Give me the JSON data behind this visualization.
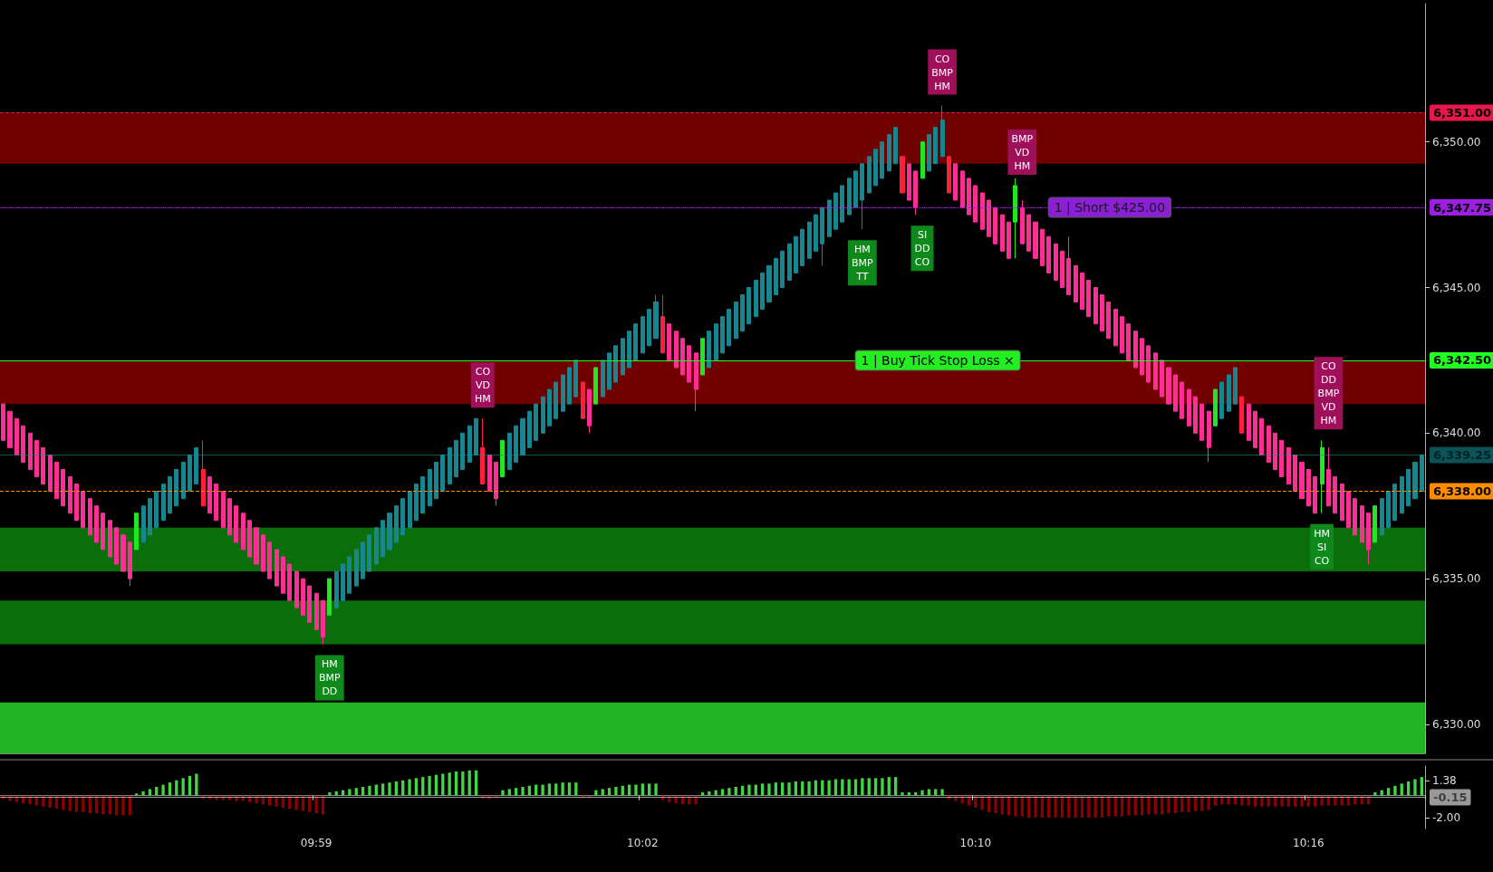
{
  "chart_data": [
    {
      "type": "candlestick",
      "categories": [
        null,
        null,
        null,
        null,
        null,
        null,
        null,
        null,
        null,
        null,
        null,
        null,
        null,
        null,
        null,
        null,
        null,
        null,
        null,
        null,
        null,
        null,
        null,
        null,
        null,
        null,
        null,
        null,
        null,
        null,
        null,
        null,
        null,
        null,
        null,
        null,
        null,
        null,
        null,
        null,
        null,
        null,
        null,
        null,
        null,
        null,
        null,
        null,
        null,
        null,
        null,
        null,
        null,
        null,
        null,
        null,
        null,
        null,
        null,
        null,
        null,
        null,
        null,
        null,
        null,
        null,
        null,
        null,
        null,
        null,
        null,
        null,
        null,
        null,
        null,
        null,
        null,
        null,
        null,
        null,
        null,
        null,
        null,
        null,
        null,
        null,
        null,
        null,
        null,
        null,
        null,
        null,
        null,
        null,
        null,
        null,
        null,
        null,
        null,
        null,
        null,
        null,
        null,
        null,
        null,
        null,
        null,
        null,
        null,
        null,
        null,
        null,
        null,
        null,
        null,
        null,
        null,
        null,
        null,
        null,
        null,
        null,
        null,
        null,
        null,
        null,
        null,
        null,
        null,
        null,
        null,
        null,
        null,
        null,
        null,
        null,
        null,
        null,
        null,
        null,
        null,
        null,
        null,
        null,
        null,
        null,
        null,
        null,
        null,
        null,
        null,
        null,
        null,
        null,
        null,
        null,
        null,
        null,
        null,
        null,
        null,
        null,
        null,
        null,
        null,
        null,
        null,
        null,
        null,
        null,
        null,
        null,
        null,
        null,
        null,
        null,
        null,
        null,
        null,
        null,
        null,
        null,
        null,
        null,
        null,
        null,
        null,
        null,
        null,
        null,
        null,
        null,
        null,
        null,
        null,
        null,
        null,
        null,
        null,
        null,
        null,
        null,
        null,
        null,
        null,
        null,
        null,
        null,
        null,
        null,
        null,
        null,
        null,
        null
      ],
      "ohlc": [
        [
          6341,
          6341,
          6339.75,
          6339.75
        ],
        [
          6340.75,
          6340.75,
          6339.5,
          6339.5
        ],
        [
          6340.5,
          6340.5,
          6339.25,
          6339.25
        ],
        [
          6340.25,
          6340.25,
          6339,
          6339
        ],
        [
          6340,
          6340,
          6338.75,
          6338.75
        ],
        [
          6339.75,
          6339.75,
          6338.5,
          6338.5
        ],
        [
          6339.5,
          6339.5,
          6338.25,
          6338.25
        ],
        [
          6339.25,
          6339.25,
          6338,
          6338
        ],
        [
          6339,
          6339,
          6337.75,
          6337.75
        ],
        [
          6338.75,
          6338.75,
          6337.5,
          6337.5
        ],
        [
          6338.5,
          6338.5,
          6337.25,
          6337.25
        ],
        [
          6338.25,
          6338.25,
          6337,
          6337
        ],
        [
          6338,
          6338,
          6336.75,
          6336.75
        ],
        [
          6337.75,
          6337.75,
          6336.5,
          6336.5
        ],
        [
          6337.5,
          6337.5,
          6336.25,
          6336.25
        ],
        [
          6337.25,
          6337.25,
          6336,
          6336
        ],
        [
          6337,
          6337,
          6335.75,
          6335.75
        ],
        [
          6336.75,
          6336.75,
          6335.5,
          6335.5
        ],
        [
          6336.5,
          6336.5,
          6335.25,
          6335.25
        ],
        [
          6336.25,
          6336.25,
          6334.75,
          6335
        ],
        [
          6336,
          6337.25,
          6336,
          6337.25
        ],
        [
          6336.25,
          6337.5,
          6336.25,
          6337.5
        ],
        [
          6336.5,
          6337.75,
          6336.5,
          6337.75
        ],
        [
          6336.75,
          6338,
          6336.75,
          6338
        ],
        [
          6337,
          6338.25,
          6337,
          6338.25
        ],
        [
          6337.25,
          6338.5,
          6337.25,
          6338.5
        ],
        [
          6337.5,
          6338.75,
          6337.5,
          6338.75
        ],
        [
          6337.75,
          6339,
          6337.75,
          6339
        ],
        [
          6338,
          6339.25,
          6338,
          6339.25
        ],
        [
          6338.25,
          6339.5,
          6338.25,
          6339.5
        ],
        [
          6338.75,
          6339.75,
          6337.5,
          6337.5
        ],
        [
          6338.5,
          6338.5,
          6337.25,
          6337.25
        ],
        [
          6338.25,
          6338.25,
          6337,
          6337
        ],
        [
          6338,
          6338,
          6336.75,
          6336.75
        ],
        [
          6337.75,
          6337.75,
          6336.5,
          6336.5
        ],
        [
          6337.5,
          6337.5,
          6336.25,
          6336.25
        ],
        [
          6337.25,
          6337.25,
          6336,
          6336
        ],
        [
          6337,
          6337,
          6335.75,
          6335.75
        ],
        [
          6336.75,
          6336.75,
          6335.5,
          6335.5
        ],
        [
          6336.5,
          6336.5,
          6335.25,
          6335.25
        ],
        [
          6336.25,
          6336.25,
          6335,
          6335
        ],
        [
          6336,
          6336,
          6334.75,
          6334.75
        ],
        [
          6335.75,
          6335.75,
          6334.5,
          6334.5
        ],
        [
          6335.5,
          6335.5,
          6334.25,
          6334.25
        ],
        [
          6335.25,
          6335.25,
          6334,
          6334
        ],
        [
          6335,
          6335,
          6333.75,
          6333.75
        ],
        [
          6334.75,
          6334.75,
          6333.5,
          6333.5
        ],
        [
          6334.5,
          6334.5,
          6333.25,
          6333.25
        ],
        [
          6334.25,
          6334.25,
          6332.75,
          6333
        ],
        [
          6333.75,
          6335,
          6333.75,
          6335
        ],
        [
          6334,
          6335.25,
          6334,
          6335.25
        ],
        [
          6334.25,
          6335.5,
          6334.25,
          6335.5
        ],
        [
          6334.5,
          6335.75,
          6334.5,
          6335.75
        ],
        [
          6334.75,
          6336,
          6334.75,
          6336
        ],
        [
          6335,
          6336.25,
          6335,
          6336.25
        ],
        [
          6335.25,
          6336.5,
          6335.25,
          6336.5
        ],
        [
          6335.5,
          6336.75,
          6335.5,
          6336.75
        ],
        [
          6335.75,
          6337,
          6335.75,
          6337
        ],
        [
          6336,
          6337.25,
          6336,
          6337.25
        ],
        [
          6336.25,
          6337.5,
          6336.25,
          6337.5
        ],
        [
          6336.5,
          6337.75,
          6336.5,
          6337.75
        ],
        [
          6336.75,
          6338,
          6336.75,
          6338
        ],
        [
          6337,
          6338.25,
          6337,
          6338.25
        ],
        [
          6337.25,
          6338.5,
          6337.25,
          6338.5
        ],
        [
          6337.5,
          6338.75,
          6337.5,
          6338.75
        ],
        [
          6337.75,
          6339,
          6337.75,
          6339
        ],
        [
          6338,
          6339.25,
          6338,
          6339.25
        ],
        [
          6338.25,
          6339.5,
          6338.25,
          6339.5
        ],
        [
          6338.5,
          6339.75,
          6338.5,
          6339.75
        ],
        [
          6338.75,
          6340,
          6338.75,
          6340
        ],
        [
          6339,
          6340.25,
          6339,
          6340.25
        ],
        [
          6339.25,
          6340.5,
          6339.25,
          6340.5
        ],
        [
          6339.5,
          6340.5,
          6338.25,
          6338.25
        ],
        [
          6339.25,
          6339.25,
          6338,
          6338
        ],
        [
          6339,
          6339,
          6337.5,
          6337.75
        ],
        [
          6338.5,
          6339.75,
          6338.5,
          6339.75
        ],
        [
          6338.75,
          6340,
          6338.75,
          6340
        ],
        [
          6339,
          6340.25,
          6339,
          6340.25
        ],
        [
          6339.25,
          6340.5,
          6339.25,
          6340.5
        ],
        [
          6339.5,
          6340.75,
          6339.5,
          6340.75
        ],
        [
          6339.75,
          6341,
          6339.75,
          6341
        ],
        [
          6340,
          6341.25,
          6340,
          6341.25
        ],
        [
          6340.25,
          6341.5,
          6340.25,
          6341.5
        ],
        [
          6340.5,
          6341.75,
          6340.5,
          6341.75
        ],
        [
          6340.75,
          6342,
          6340.75,
          6342
        ],
        [
          6341,
          6342.25,
          6341,
          6342.25
        ],
        [
          6341.25,
          6342.5,
          6341.25,
          6342.5
        ],
        [
          6341.75,
          6341.75,
          6340.5,
          6340.5
        ],
        [
          6341.5,
          6341.5,
          6340,
          6340.25
        ],
        [
          6341,
          6342.25,
          6341,
          6342.25
        ],
        [
          6341.25,
          6342.5,
          6341.25,
          6342.5
        ],
        [
          6341.5,
          6342.75,
          6341.5,
          6342.75
        ],
        [
          6341.75,
          6343,
          6341.75,
          6343
        ],
        [
          6342,
          6343.25,
          6342,
          6343.25
        ],
        [
          6342.25,
          6343.5,
          6342.25,
          6343.5
        ],
        [
          6342.5,
          6343.75,
          6342.5,
          6343.75
        ],
        [
          6342.75,
          6344,
          6342.75,
          6344
        ],
        [
          6343,
          6344.25,
          6343,
          6344.25
        ],
        [
          6343.25,
          6344.75,
          6343.25,
          6344.5
        ],
        [
          6344,
          6344.75,
          6342.75,
          6342.75
        ],
        [
          6343.75,
          6343.75,
          6342.5,
          6342.5
        ],
        [
          6343.5,
          6343.5,
          6342.25,
          6342.25
        ],
        [
          6343.25,
          6343.25,
          6342,
          6342
        ],
        [
          6343,
          6343,
          6341.75,
          6341.75
        ],
        [
          6342.75,
          6342.75,
          6340.75,
          6341.5
        ],
        [
          6342,
          6343.25,
          6342,
          6343.25
        ],
        [
          6342.25,
          6343.5,
          6342.25,
          6343.5
        ],
        [
          6342.5,
          6343.75,
          6342.5,
          6343.75
        ],
        [
          6342.75,
          6344,
          6342.75,
          6344
        ],
        [
          6343,
          6344.25,
          6343,
          6344.25
        ],
        [
          6343.25,
          6344.5,
          6343.25,
          6344.5
        ],
        [
          6343.5,
          6344.75,
          6343.5,
          6344.75
        ],
        [
          6343.75,
          6345,
          6343.75,
          6345
        ],
        [
          6344,
          6345.25,
          6344,
          6345.25
        ],
        [
          6344.25,
          6345.5,
          6344.25,
          6345.5
        ],
        [
          6344.5,
          6345.75,
          6344.5,
          6345.75
        ],
        [
          6344.75,
          6346,
          6344.75,
          6346
        ],
        [
          6345,
          6346.25,
          6345,
          6346.25
        ],
        [
          6345.25,
          6346.5,
          6345.25,
          6346.5
        ],
        [
          6345.5,
          6346.75,
          6345.5,
          6346.75
        ],
        [
          6345.75,
          6347,
          6345.75,
          6347
        ],
        [
          6346,
          6347.25,
          6346,
          6347.25
        ],
        [
          6346.25,
          6347.5,
          6346.25,
          6347.5
        ],
        [
          6346.5,
          6347.75,
          6345.75,
          6347.75
        ],
        [
          6346.75,
          6348,
          6346.75,
          6348
        ],
        [
          6347,
          6348.25,
          6347,
          6348.25
        ],
        [
          6347.25,
          6348.5,
          6347.25,
          6348.5
        ],
        [
          6347.5,
          6348.75,
          6347.5,
          6348.75
        ],
        [
          6347.75,
          6349,
          6347.75,
          6349
        ],
        [
          6348,
          6349.25,
          6347,
          6349.25
        ],
        [
          6348.25,
          6349.5,
          6348.25,
          6349.5
        ],
        [
          6348.5,
          6349.75,
          6348.5,
          6349.75
        ],
        [
          6348.75,
          6350,
          6348.75,
          6350
        ],
        [
          6349,
          6350.25,
          6349,
          6350.25
        ],
        [
          6349.25,
          6350.5,
          6349.25,
          6350.5
        ],
        [
          6349.5,
          6349.5,
          6348.25,
          6348.25
        ],
        [
          6349.25,
          6349.25,
          6348,
          6348
        ],
        [
          6349,
          6349,
          6347.5,
          6347.75
        ],
        [
          6348.75,
          6350,
          6348.75,
          6350
        ],
        [
          6349,
          6350.25,
          6349,
          6350.25
        ],
        [
          6349.25,
          6350.5,
          6349.25,
          6350.5
        ],
        [
          6349.5,
          6351.25,
          6349.5,
          6350.75
        ],
        [
          6349.5,
          6349.5,
          6348.25,
          6348.25
        ],
        [
          6349.25,
          6349.25,
          6348,
          6348
        ],
        [
          6349,
          6349,
          6347.75,
          6347.75
        ],
        [
          6348.75,
          6348.75,
          6347.5,
          6347.5
        ],
        [
          6348.5,
          6348.5,
          6347.25,
          6347.25
        ],
        [
          6348.25,
          6348.25,
          6347,
          6347
        ],
        [
          6348,
          6348,
          6346.75,
          6346.75
        ],
        [
          6347.75,
          6347.75,
          6346.5,
          6346.5
        ],
        [
          6347.5,
          6347.5,
          6346.25,
          6346.25
        ],
        [
          6347.25,
          6347.25,
          6346,
          6346
        ],
        [
          6347.25,
          6348.75,
          6346,
          6348.5
        ],
        [
          6347.75,
          6348,
          6346.5,
          6346.5
        ],
        [
          6347.5,
          6347.5,
          6346.25,
          6346.25
        ],
        [
          6347.25,
          6347.25,
          6346,
          6346
        ],
        [
          6347,
          6347,
          6345.75,
          6345.75
        ],
        [
          6346.75,
          6346.75,
          6345.5,
          6345.5
        ],
        [
          6346.5,
          6346.5,
          6345.25,
          6345.25
        ],
        [
          6346.25,
          6346.25,
          6345,
          6345
        ],
        [
          6346,
          6346.75,
          6344.75,
          6344.75
        ],
        [
          6345.75,
          6345.75,
          6344.5,
          6344.5
        ],
        [
          6345.5,
          6345.5,
          6344.25,
          6344.25
        ],
        [
          6345.25,
          6345.25,
          6344,
          6344
        ],
        [
          6345,
          6345,
          6343.75,
          6343.75
        ],
        [
          6344.75,
          6344.75,
          6343.5,
          6343.5
        ],
        [
          6344.5,
          6344.5,
          6343.25,
          6343.25
        ],
        [
          6344.25,
          6344.25,
          6343,
          6343
        ],
        [
          6344,
          6344,
          6342.75,
          6342.75
        ],
        [
          6343.75,
          6343.75,
          6342.5,
          6342.5
        ],
        [
          6343.5,
          6343.5,
          6342.25,
          6342.25
        ],
        [
          6343.25,
          6343.25,
          6342,
          6342
        ],
        [
          6343,
          6343,
          6341.75,
          6341.75
        ],
        [
          6342.75,
          6342.75,
          6341.5,
          6341.5
        ],
        [
          6342.5,
          6342.5,
          6341.25,
          6341.25
        ],
        [
          6342.25,
          6342.25,
          6341,
          6341
        ],
        [
          6342,
          6342,
          6340.75,
          6340.75
        ],
        [
          6341.75,
          6341.75,
          6340.5,
          6340.5
        ],
        [
          6341.5,
          6341.5,
          6340.25,
          6340.25
        ],
        [
          6341.25,
          6341.25,
          6340,
          6340
        ],
        [
          6341,
          6341,
          6339.75,
          6339.75
        ],
        [
          6340.75,
          6340.75,
          6339,
          6339.5
        ],
        [
          6340.25,
          6341.5,
          6340.25,
          6341.5
        ],
        [
          6340.5,
          6341.75,
          6340.5,
          6341.75
        ],
        [
          6340.75,
          6342,
          6340.75,
          6342
        ],
        [
          6341,
          6342.25,
          6341,
          6342.25
        ],
        [
          6341.25,
          6341.25,
          6340,
          6340
        ],
        [
          6341,
          6341,
          6339.75,
          6339.75
        ],
        [
          6340.75,
          6340.75,
          6339.5,
          6339.5
        ],
        [
          6340.5,
          6340.5,
          6339.25,
          6339.25
        ],
        [
          6340.25,
          6340.25,
          6339,
          6339
        ],
        [
          6340,
          6340,
          6338.75,
          6338.75
        ],
        [
          6339.75,
          6339.75,
          6338.5,
          6338.5
        ],
        [
          6339.5,
          6339.5,
          6338.25,
          6338.25
        ],
        [
          6339.25,
          6339.25,
          6338,
          6338
        ],
        [
          6339,
          6339,
          6337.75,
          6337.75
        ],
        [
          6338.75,
          6338.75,
          6337.5,
          6337.5
        ],
        [
          6338.5,
          6338.5,
          6337.25,
          6337.25
        ],
        [
          6338.25,
          6339.75,
          6337.25,
          6339.5
        ],
        [
          6338.75,
          6339.5,
          6337.5,
          6337.5
        ],
        [
          6338.5,
          6338.5,
          6337.25,
          6337.25
        ],
        [
          6338.25,
          6338.25,
          6337,
          6337
        ],
        [
          6338,
          6338,
          6336.75,
          6336.75
        ],
        [
          6337.75,
          6337.75,
          6336.5,
          6336.5
        ],
        [
          6337.5,
          6337.5,
          6336.25,
          6336.25
        ],
        [
          6337.25,
          6337.25,
          6335.5,
          6336
        ],
        [
          6336.25,
          6337.5,
          6336.25,
          6337.5
        ],
        [
          6336.5,
          6337.75,
          6336.5,
          6337.75
        ],
        [
          6336.75,
          6338,
          6336.75,
          6338
        ],
        [
          6337,
          6338.25,
          6337,
          6338.25
        ],
        [
          6337.25,
          6338.5,
          6337.25,
          6338.5
        ],
        [
          6337.5,
          6338.75,
          6337.5,
          6338.75
        ],
        [
          6337.75,
          6339,
          6337.75,
          6339
        ],
        [
          6338,
          6339.25,
          6338,
          6339.25
        ]
      ],
      "colors": [
        "#ff2d95",
        "#ff2d95",
        "#ff2d95",
        "#ff2d95",
        "#ff2d95",
        "#ff2d95",
        "#ff2d95",
        "#ff2d95",
        "#ff2d95",
        "#ff2d95",
        "#ff2d95",
        "#ff2d95",
        "#ff2d95",
        "#ff2d95",
        "#ff2d95",
        "#ff2d95",
        "#ff2d95",
        "#ff2d95",
        "#ff2d95",
        "#ff2d95",
        "#22e622",
        "#17868f",
        "#17868f",
        "#17868f",
        "#17868f",
        "#17868f",
        "#17868f",
        "#17868f",
        "#17868f",
        "#17868f",
        "#ff1f3d",
        "#ff2d95",
        "#ff2d95",
        "#ff2d95",
        "#ff2d95",
        "#ff2d95",
        "#ff2d95",
        "#ff2d95",
        "#ff2d95",
        "#ff2d95",
        "#ff2d95",
        "#ff2d95",
        "#ff2d95",
        "#ff2d95",
        "#ff2d95",
        "#ff2d95",
        "#ff2d95",
        "#ff2d95",
        "#ff2d95",
        "#22e622",
        "#17868f",
        "#17868f",
        "#17868f",
        "#17868f",
        "#17868f",
        "#17868f",
        "#17868f",
        "#17868f",
        "#17868f",
        "#17868f",
        "#17868f",
        "#17868f",
        "#17868f",
        "#17868f",
        "#17868f",
        "#17868f",
        "#17868f",
        "#17868f",
        "#17868f",
        "#17868f",
        "#17868f",
        "#17868f",
        "#ff1f3d",
        "#ff2d95",
        "#ff2d95",
        "#22e622",
        "#17868f",
        "#17868f",
        "#17868f",
        "#17868f",
        "#17868f",
        "#17868f",
        "#17868f",
        "#17868f",
        "#17868f",
        "#17868f",
        "#17868f",
        "#ff1f3d",
        "#ff2d95",
        "#22e622",
        "#17868f",
        "#17868f",
        "#17868f",
        "#17868f",
        "#17868f",
        "#17868f",
        "#17868f",
        "#17868f",
        "#17868f",
        "#ff1f3d",
        "#ff2d95",
        "#ff2d95",
        "#ff2d95",
        "#ff2d95",
        "#ff2d95",
        "#22e622",
        "#17868f",
        "#17868f",
        "#17868f",
        "#17868f",
        "#17868f",
        "#17868f",
        "#17868f",
        "#17868f",
        "#17868f",
        "#17868f",
        "#17868f",
        "#17868f",
        "#17868f",
        "#17868f",
        "#17868f",
        "#17868f",
        "#17868f",
        "#17868f",
        "#17868f",
        "#17868f",
        "#17868f",
        "#17868f",
        "#17868f",
        "#17868f",
        "#17868f",
        "#17868f",
        "#17868f",
        "#17868f",
        "#17868f",
        "#ff1f3d",
        "#ff2d95",
        "#ff2d95",
        "#22e622",
        "#17868f",
        "#17868f",
        "#17868f",
        "#ff1f3d",
        "#ff2d95",
        "#ff2d95",
        "#ff2d95",
        "#ff2d95",
        "#ff2d95",
        "#ff2d95",
        "#ff2d95",
        "#ff2d95",
        "#ff2d95",
        "#22e622",
        "#ff2d95",
        "#ff2d95",
        "#ff2d95",
        "#ff2d95",
        "#ff2d95",
        "#ff2d95",
        "#ff2d95",
        "#ff2d95",
        "#ff2d95",
        "#ff2d95",
        "#ff2d95",
        "#ff2d95",
        "#ff2d95",
        "#ff2d95",
        "#ff2d95",
        "#ff2d95",
        "#ff2d95",
        "#ff2d95",
        "#ff2d95",
        "#ff2d95",
        "#ff2d95",
        "#ff2d95",
        "#ff2d95",
        "#ff2d95",
        "#ff2d95",
        "#ff2d95",
        "#ff2d95",
        "#ff2d95",
        "#ff2d95",
        "#22e622",
        "#17868f",
        "#17868f",
        "#17868f",
        "#ff1f3d",
        "#ff2d95",
        "#ff2d95",
        "#ff2d95",
        "#ff2d95",
        "#ff2d95",
        "#ff2d95",
        "#ff2d95",
        "#ff2d95",
        "#ff2d95",
        "#ff2d95",
        "#ff2d95",
        "#22e622",
        "#ff2d95",
        "#ff2d95",
        "#ff2d95",
        "#ff2d95",
        "#ff2d95",
        "#ff2d95",
        "#ff2d95",
        "#22e622",
        "#17868f",
        "#17868f",
        "#17868f",
        "#17868f",
        "#17868f",
        "#17868f",
        "#17868f"
      ],
      "ylim": [
        6329,
        6354.75
      ],
      "yticks": [
        {
          "value": 6330,
          "label": "6,330.00"
        },
        {
          "value": 6335,
          "label": "6,335.00"
        },
        {
          "value": 6340,
          "label": "6,340.00"
        },
        {
          "value": 6345,
          "label": "6,345.00"
        },
        {
          "value": 6350,
          "label": "6,350.00"
        }
      ],
      "tick_labels": "y",
      "ref_lines": [
        {
          "axis": "y",
          "value": 6351,
          "label": "6,351.00",
          "color": "#e8174a",
          "line_style": "dashed"
        },
        {
          "axis": "y",
          "value": 6347.75,
          "label": "6,347.75",
          "color": "#9a1fe0",
          "line_style": "dotted"
        },
        {
          "axis": "y",
          "value": 6342.5,
          "label": "6,342.50",
          "color": "#22ff22",
          "line_style": "solid"
        },
        {
          "axis": "y",
          "value": 6339.25,
          "label": "6,339.25",
          "color": "#138a94"
        },
        {
          "axis": "y",
          "value": 6338,
          "label": "6,338.00",
          "color": "#ff8c00",
          "line_style": "dashed"
        }
      ],
      "bands": [
        {
          "axis": "y",
          "from": 6349.25,
          "to": 6351,
          "color": "#700000"
        },
        {
          "axis": "y",
          "from": 6341,
          "to": 6342.5,
          "color": "#700000"
        },
        {
          "axis": "y",
          "from": 6335.25,
          "to": 6336.75,
          "color": "#0a6e0a"
        },
        {
          "axis": "y",
          "from": 6332.75,
          "to": 6334.25,
          "color": "#0a6e0a"
        },
        {
          "axis": "y",
          "from": 6329,
          "to": 6330.75,
          "color": "#22b422"
        }
      ],
      "annotations": [
        "HM\nBMP\nDD",
        "CO\nVD\nHM",
        "HM\nBMP\nTT",
        "SI\nDD\nCO",
        "CO\nBMP\nHM",
        "BMP\nVD\nHM",
        "CO\nDD\nBMP\nVD\nHM",
        "HM\nSI\nCO",
        "1 | Short $425.00",
        "1 | Buy Tick Stop Loss ×"
      ]
    },
    {
      "type": "bar",
      "categories": [
        null,
        null,
        null,
        null,
        null,
        null,
        null,
        null,
        null,
        null,
        null,
        null,
        null,
        null,
        null,
        null,
        null,
        null,
        null,
        null,
        null,
        null,
        null,
        null,
        null,
        null,
        null,
        null,
        null,
        null,
        null,
        null,
        null,
        null,
        null,
        null,
        null,
        null,
        null,
        null,
        null,
        null,
        null,
        null,
        null,
        null,
        null,
        "09:59",
        null,
        null,
        null,
        null,
        null,
        null,
        null,
        null,
        null,
        null,
        null,
        null,
        null,
        null,
        null,
        null,
        null,
        null,
        null,
        null,
        null,
        null,
        null,
        null,
        null,
        null,
        null,
        null,
        null,
        null,
        null,
        null,
        null,
        null,
        null,
        null,
        null,
        null,
        null,
        null,
        null,
        null,
        null,
        null,
        null,
        null,
        null,
        null,
        "10:02",
        null,
        null,
        null,
        null,
        null,
        null,
        null,
        null,
        null,
        null,
        null,
        null,
        null,
        null,
        null,
        null,
        null,
        null,
        null,
        null,
        null,
        null,
        null,
        null,
        null,
        null,
        null,
        null,
        null,
        null,
        null,
        null,
        null,
        null,
        null,
        null,
        null,
        null,
        null,
        null,
        null,
        null,
        null,
        null,
        null,
        null,
        null,
        null,
        null,
        "10:10",
        null,
        null,
        null,
        null,
        null,
        null,
        null,
        null,
        null,
        null,
        null,
        null,
        null,
        null,
        null,
        null,
        null,
        null,
        null,
        null,
        null,
        null,
        null,
        null,
        null,
        null,
        null,
        null,
        null,
        null,
        null,
        null,
        null,
        null,
        null,
        null,
        null,
        null,
        null,
        null,
        null,
        null,
        null,
        null,
        null,
        null,
        null,
        null,
        null,
        "10:16",
        null,
        null,
        null,
        null,
        null,
        null,
        null,
        null,
        null,
        null,
        null,
        null,
        null,
        null,
        null,
        null,
        null
      ],
      "values": [
        -0.3,
        -0.5,
        -0.6,
        -0.7,
        -0.8,
        -0.9,
        -1.0,
        -1.1,
        -1.2,
        -1.3,
        -1.4,
        -1.5,
        -1.5,
        -1.6,
        -1.6,
        -1.7,
        -1.7,
        -1.8,
        -1.8,
        -1.8,
        0.2,
        0.4,
        0.6,
        0.8,
        1.0,
        1.2,
        1.4,
        1.6,
        1.8,
        2.0,
        -0.3,
        -0.3,
        -0.4,
        -0.4,
        -0.4,
        -0.5,
        -0.5,
        -0.6,
        -0.7,
        -0.8,
        -0.9,
        -1.0,
        -1.1,
        -1.2,
        -1.3,
        -1.4,
        -1.5,
        -1.6,
        -1.7,
        0.3,
        0.4,
        0.5,
        0.6,
        0.7,
        0.8,
        0.9,
        1.0,
        1.1,
        1.2,
        1.3,
        1.4,
        1.5,
        1.6,
        1.7,
        1.8,
        1.9,
        2.0,
        2.1,
        2.2,
        2.2,
        2.3,
        2.3,
        -0.3,
        -0.3,
        -0.2,
        0.5,
        0.6,
        0.7,
        0.8,
        0.9,
        1.0,
        1.0,
        1.1,
        1.1,
        1.2,
        1.2,
        1.2,
        -0.2,
        -0.2,
        0.5,
        0.6,
        0.7,
        0.8,
        0.9,
        1.0,
        1.0,
        1.1,
        1.1,
        1.1,
        -0.4,
        -0.6,
        -0.7,
        -0.8,
        -0.8,
        -0.8,
        0.3,
        0.4,
        0.5,
        0.6,
        0.7,
        0.8,
        0.9,
        1.0,
        1.0,
        1.1,
        1.1,
        1.2,
        1.2,
        1.2,
        1.3,
        1.3,
        1.3,
        1.4,
        1.4,
        1.4,
        1.5,
        1.5,
        1.5,
        1.5,
        1.6,
        1.6,
        1.6,
        1.6,
        1.7,
        1.7,
        0.3,
        0.3,
        0.3,
        0.5,
        0.6,
        0.6,
        0.6,
        -0.3,
        -0.5,
        -0.7,
        -0.9,
        -1.1,
        -1.3,
        -1.5,
        -1.6,
        -1.7,
        -1.8,
        -1.9,
        -1.9,
        -2.0,
        -2.0,
        -2.0,
        -2.0,
        -2.0,
        -2.0,
        -2.0,
        -2.0,
        -2.0,
        -2.0,
        -2.0,
        -2.0,
        -1.9,
        -1.9,
        -1.9,
        -1.8,
        -1.8,
        -1.8,
        -1.7,
        -1.7,
        -1.7,
        -1.6,
        -1.6,
        -1.5,
        -1.5,
        -1.4,
        -1.4,
        -1.3,
        -0.9,
        -0.8,
        -0.8,
        -0.8,
        -0.9,
        -0.9,
        -1.0,
        -1.0,
        -1.0,
        -1.0,
        -1.0,
        -1.0,
        -1.0,
        -1.0,
        -1.0,
        -1.0,
        -0.9,
        -0.9,
        -0.9,
        -0.9,
        -0.9,
        -0.8,
        -0.8,
        -0.8,
        0.3,
        0.5,
        0.7,
        0.9,
        1.1,
        1.3,
        1.5,
        1.7
      ],
      "colors": [
        "#8b0000",
        "#8b0000",
        "#8b0000",
        "#8b0000",
        "#8b0000",
        "#8b0000",
        "#8b0000",
        "#8b0000",
        "#8b0000",
        "#8b0000",
        "#8b0000",
        "#8b0000",
        "#8b0000",
        "#8b0000",
        "#8b0000",
        "#8b0000",
        "#8b0000",
        "#8b0000",
        "#8b0000",
        "#8b0000",
        "#44d444",
        "#44d444",
        "#44d444",
        "#44d444",
        "#44d444",
        "#44d444",
        "#44d444",
        "#44d444",
        "#44d444",
        "#44d444",
        "#8b0000",
        "#8b0000",
        "#8b0000",
        "#8b0000",
        "#8b0000",
        "#8b0000",
        "#8b0000",
        "#8b0000",
        "#8b0000",
        "#8b0000",
        "#8b0000",
        "#8b0000",
        "#8b0000",
        "#8b0000",
        "#8b0000",
        "#8b0000",
        "#8b0000",
        "#8b0000",
        "#8b0000",
        "#44d444",
        "#44d444",
        "#44d444",
        "#44d444",
        "#44d444",
        "#44d444",
        "#44d444",
        "#44d444",
        "#44d444",
        "#44d444",
        "#44d444",
        "#44d444",
        "#44d444",
        "#44d444",
        "#44d444",
        "#44d444",
        "#44d444",
        "#44d444",
        "#44d444",
        "#44d444",
        "#44d444",
        "#44d444",
        "#44d444",
        "#8b0000",
        "#8b0000",
        "#8b0000",
        "#44d444",
        "#44d444",
        "#44d444",
        "#44d444",
        "#44d444",
        "#44d444",
        "#44d444",
        "#44d444",
        "#44d444",
        "#44d444",
        "#44d444",
        "#44d444",
        "#8b0000",
        "#8b0000",
        "#44d444",
        "#44d444",
        "#44d444",
        "#44d444",
        "#44d444",
        "#44d444",
        "#44d444",
        "#44d444",
        "#44d444",
        "#44d444",
        "#8b0000",
        "#8b0000",
        "#8b0000",
        "#8b0000",
        "#8b0000",
        "#8b0000",
        "#44d444",
        "#44d444",
        "#44d444",
        "#44d444",
        "#44d444",
        "#44d444",
        "#44d444",
        "#44d444",
        "#44d444",
        "#44d444",
        "#44d444",
        "#44d444",
        "#44d444",
        "#44d444",
        "#44d444",
        "#44d444",
        "#44d444",
        "#44d444",
        "#44d444",
        "#44d444",
        "#44d444",
        "#44d444",
        "#44d444",
        "#44d444",
        "#44d444",
        "#44d444",
        "#44d444",
        "#44d444",
        "#44d444",
        "#44d444",
        "#44d444",
        "#44d444",
        "#44d444",
        "#44d444",
        "#44d444",
        "#44d444",
        "#44d444",
        "#8b0000",
        "#8b0000",
        "#8b0000",
        "#8b0000",
        "#8b0000",
        "#8b0000",
        "#8b0000",
        "#8b0000",
        "#8b0000",
        "#8b0000",
        "#8b0000",
        "#8b0000",
        "#8b0000",
        "#8b0000",
        "#8b0000",
        "#8b0000",
        "#8b0000",
        "#8b0000",
        "#8b0000",
        "#8b0000",
        "#8b0000",
        "#8b0000",
        "#8b0000",
        "#8b0000",
        "#8b0000",
        "#8b0000",
        "#8b0000",
        "#8b0000",
        "#8b0000",
        "#8b0000",
        "#8b0000",
        "#8b0000",
        "#8b0000",
        "#8b0000",
        "#8b0000",
        "#8b0000",
        "#8b0000",
        "#8b0000",
        "#8b0000",
        "#8b0000",
        "#8b0000",
        "#8b0000",
        "#8b0000",
        "#8b0000",
        "#8b0000",
        "#8b0000",
        "#8b0000",
        "#8b0000",
        "#8b0000",
        "#8b0000",
        "#8b0000",
        "#8b0000",
        "#8b0000",
        "#8b0000",
        "#8b0000",
        "#8b0000",
        "#8b0000",
        "#8b0000",
        "#8b0000",
        "#8b0000",
        "#8b0000",
        "#8b0000",
        "#8b0000",
        "#8b0000",
        "#44d444",
        "#44d444",
        "#44d444",
        "#44d444",
        "#44d444",
        "#44d444",
        "#44d444",
        "#44d444"
      ],
      "ylim": [
        -3,
        2.7
      ],
      "yticks": [
        {
          "value": 1.38,
          "label": "1.38"
        },
        {
          "value": -2,
          "label": "-2.00"
        }
      ],
      "ref_lines": [
        {
          "axis": "y",
          "value": -0.15,
          "label": "-0.15",
          "color": "#ffffff"
        }
      ]
    }
  ]
}
